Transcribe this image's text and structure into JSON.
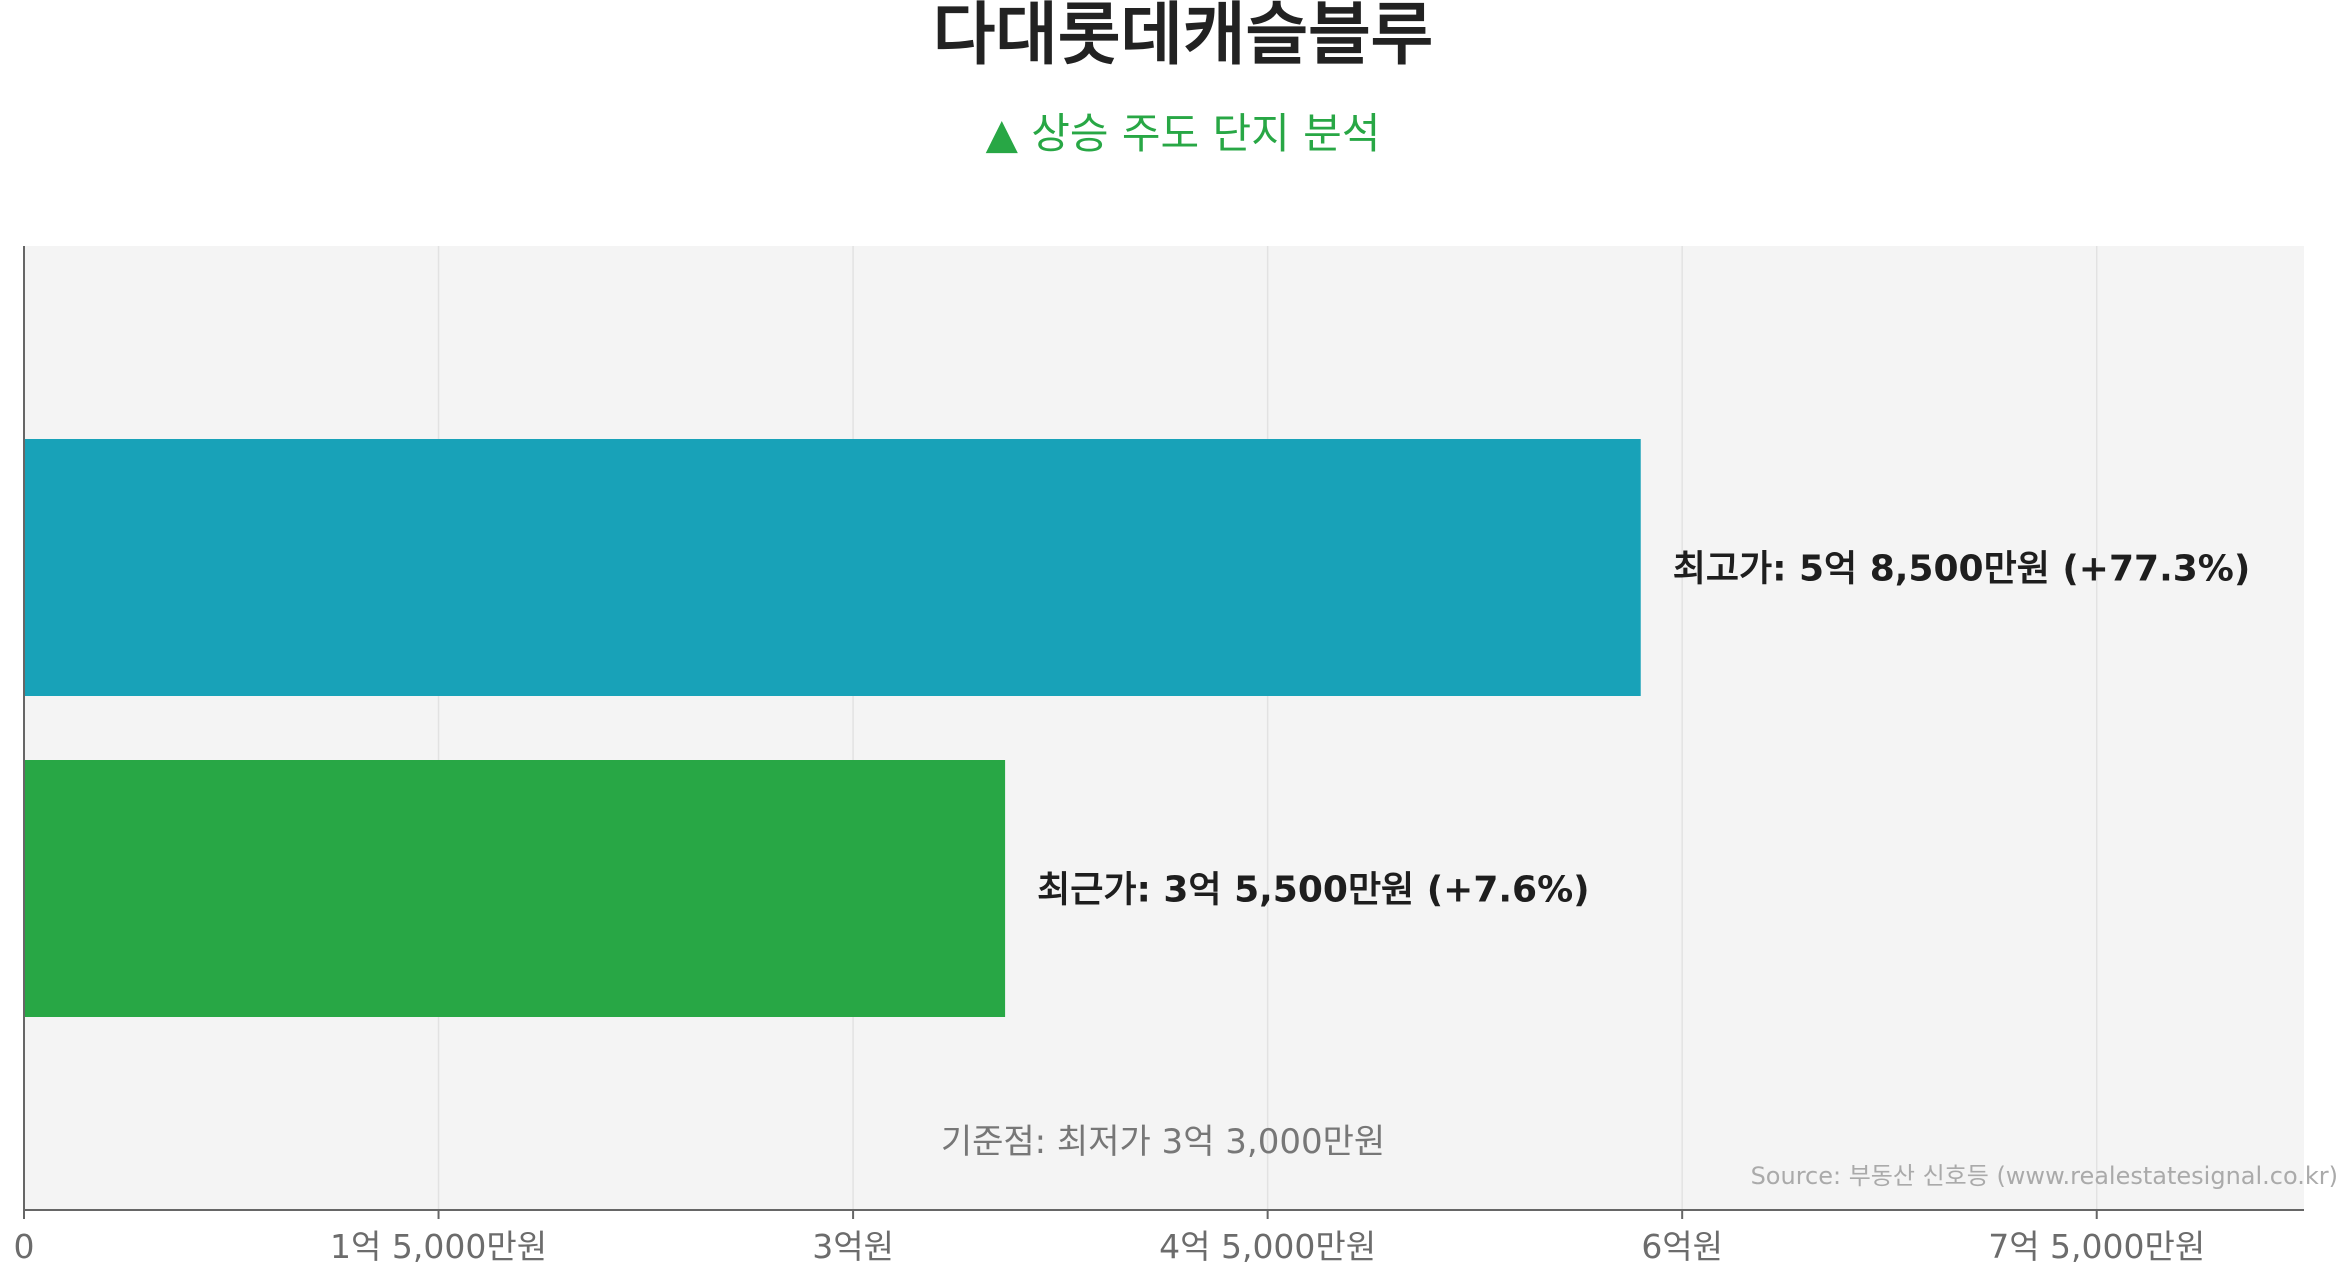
{
  "chart_data": {
    "type": "bar",
    "orientation": "horizontal",
    "title": "다대롯데캐슬블루",
    "subtitle": "▲ 상승 주도 단지 분석",
    "unit": "원",
    "xlim": [
      0,
      825000000
    ],
    "x_ticks": [
      {
        "value": 0,
        "label": "0"
      },
      {
        "value": 150000000,
        "label": "1억 5,000만원"
      },
      {
        "value": 300000000,
        "label": "3억원"
      },
      {
        "value": 450000000,
        "label": "4억 5,000만원"
      },
      {
        "value": 600000000,
        "label": "6억원"
      },
      {
        "value": 750000000,
        "label": "7억 5,000만원"
      }
    ],
    "grid": true,
    "bars": [
      {
        "category": "최고가",
        "value": 585000000,
        "label": "최고가: 5억 8,500만원 (+77.3%)",
        "color": "#18a2b8"
      },
      {
        "category": "최근가",
        "value": 355000000,
        "label": "최근가: 3억 5,500만원 (+7.6%)",
        "color": "#28a745"
      }
    ],
    "baseline": {
      "value": 330000000,
      "label": "기준점: 최저가 3억 3,000만원"
    },
    "source": "Source: 부동산 신호등 (www.realestatesignal.co.kr)"
  },
  "colors": {
    "title": "#222222",
    "subtitle": "#28a745",
    "plot_background": "#f4f4f4",
    "grid": "#e2e2e2",
    "axis": "#666666",
    "tick_text": "#6c6c6c",
    "bar_label": "#1e1e1e",
    "baseline_text": "#777777",
    "source_text": "#aaaaaa"
  }
}
